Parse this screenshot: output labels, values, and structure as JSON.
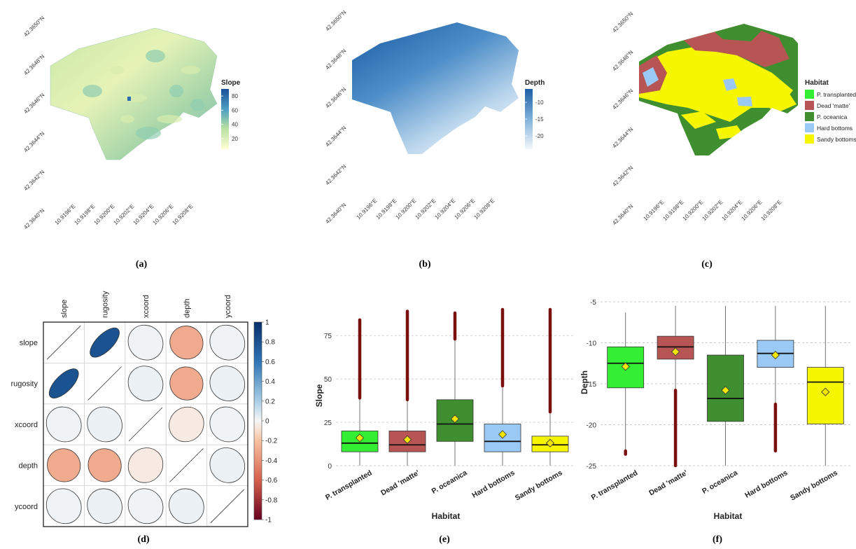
{
  "captions": {
    "a": "(a)",
    "b": "(b)",
    "c": "(c)",
    "d": "(d)",
    "e": "(e)",
    "f": "(f)"
  },
  "colors": {
    "transplanted": "#33ee33",
    "matte": "#b75555",
    "oceanica": "#3f8f30",
    "hard": "#99c9f4",
    "sandy": "#f6f600",
    "mean_marker": "#f2e600",
    "outlier": "#7a0f0f"
  },
  "chart_data": [
    {
      "id": "a",
      "type": "heatmap",
      "description_kind": "map",
      "lat_ticks": [
        "42.3650°N",
        "42.3648°N",
        "42.3646°N",
        "42.3644°N",
        "42.3642°N",
        "42.3640°N"
      ],
      "lon_ticks": [
        "10.9196°E",
        "10.9198°E",
        "10.9200°E",
        "10.9202°E",
        "10.9204°E",
        "10.9206°E",
        "10.9208°E"
      ],
      "legend": {
        "title": "Slope",
        "ticks": [
          80,
          60,
          40,
          20
        ],
        "range": [
          5,
          90
        ]
      }
    },
    {
      "id": "b",
      "type": "heatmap",
      "description_kind": "map",
      "lat_ticks": [
        "42.3650°N",
        "42.3648°N",
        "42.3646°N",
        "42.3644°N",
        "42.3642°N",
        "42.3640°N"
      ],
      "lon_ticks": [
        "10.9196°E",
        "10.9198°E",
        "10.9200°E",
        "10.9202°E",
        "10.9204°E",
        "10.9206°E",
        "10.9208°E"
      ],
      "legend": {
        "title": "Depth",
        "ticks": [
          -10,
          -15,
          -20
        ],
        "range": [
          -24,
          -6
        ]
      }
    },
    {
      "id": "c",
      "type": "heatmap",
      "description_kind": "map",
      "lat_ticks": [
        "42.3650°N",
        "42.3648°N",
        "42.3646°N",
        "42.3644°N",
        "42.3642°N",
        "42.3640°N"
      ],
      "lon_ticks": [
        "10.9196°E",
        "10.9198°E",
        "10.9200°E",
        "10.9202°E",
        "10.9204°E",
        "10.9206°E",
        "10.9208°E"
      ],
      "legend": {
        "title": "Habitat",
        "items": [
          "P. transplanted",
          "Dead 'matte'",
          "P. oceanica",
          "Hard bottoms",
          "Sandy bottoms"
        ]
      }
    },
    {
      "id": "d",
      "type": "heatmap",
      "variables": [
        "slope",
        "rugosity",
        "xcoord",
        "depth",
        "ycoord"
      ],
      "matrix": [
        [
          1,
          0.8,
          0.02,
          -0.3,
          0.02
        ],
        [
          0.8,
          1,
          0.03,
          -0.3,
          0.03
        ],
        [
          0.02,
          0.03,
          1,
          -0.05,
          0.02
        ],
        [
          -0.3,
          -0.3,
          -0.05,
          1,
          0.03
        ],
        [
          0.02,
          0.03,
          0.02,
          0.03,
          1
        ]
      ],
      "colorbar_ticks": [
        "1",
        "0.8",
        "0.6",
        "0.4",
        "0.2",
        "0",
        "-0.2",
        "-0.4",
        "-0.6",
        "-0.8",
        "-1"
      ]
    },
    {
      "id": "e",
      "type": "box",
      "xlabel": "Habitat",
      "ylabel": "Slope",
      "ylim": [
        0,
        90
      ],
      "yticks": [
        0,
        25,
        50,
        75
      ],
      "categories": [
        "P. transplanted",
        "Dead 'matte'",
        "P. oceanica",
        "Hard bottoms",
        "Sandy bottoms"
      ],
      "boxes": [
        {
          "whisker_low": 0,
          "q1": 8,
          "median": 13,
          "q3": 20,
          "whisker_high": 39,
          "mean": 16,
          "outliers_from": 39,
          "outliers_to": 84
        },
        {
          "whisker_low": 0,
          "q1": 8,
          "median": 12,
          "q3": 20,
          "whisker_high": 38,
          "mean": 15,
          "outliers_from": 38,
          "outliers_to": 89
        },
        {
          "whisker_low": 0,
          "q1": 14,
          "median": 24,
          "q3": 38,
          "whisker_high": 73,
          "mean": 27,
          "outliers_from": 73,
          "outliers_to": 88
        },
        {
          "whisker_low": 0,
          "q1": 8,
          "median": 14,
          "q3": 24,
          "whisker_high": 46,
          "mean": 18,
          "outliers_from": 46,
          "outliers_to": 90
        },
        {
          "whisker_low": 0,
          "q1": 8,
          "median": 12,
          "q3": 17,
          "whisker_high": 31,
          "mean": 13,
          "outliers_from": 31,
          "outliers_to": 90
        }
      ]
    },
    {
      "id": "f",
      "type": "box",
      "xlabel": "Habitat",
      "ylabel": "Depth",
      "ylim": [
        -25,
        -5
      ],
      "yticks": [
        -5,
        -10,
        -15,
        -20,
        -25
      ],
      "categories": [
        "P. transplanted",
        "Dead 'matte'",
        "P. oceanica",
        "Hard bottoms",
        "Sandy bottoms"
      ],
      "boxes": [
        {
          "whisker_low": -23.2,
          "q1": -15.5,
          "median": -12.5,
          "q3": -10.5,
          "whisker_high": -6.3,
          "mean": -12.9,
          "outliers_from": -23.2,
          "outliers_to": -23.6
        },
        {
          "whisker_low": -15.8,
          "q1": -12.0,
          "median": -10.5,
          "q3": -9.2,
          "whisker_high": -5.5,
          "mean": -11.1,
          "outliers_from": -25.0,
          "outliers_to": -15.8
        },
        {
          "whisker_low": -25.0,
          "q1": -19.6,
          "median": -16.8,
          "q3": -11.5,
          "whisker_high": -5.5,
          "mean": -15.8,
          "outliers_from": null,
          "outliers_to": null
        },
        {
          "whisker_low": -17.5,
          "q1": -13.0,
          "median": -11.3,
          "q3": -9.7,
          "whisker_high": -5.5,
          "mean": -11.5,
          "outliers_from": -23.2,
          "outliers_to": -17.5
        },
        {
          "whisker_low": -25.0,
          "q1": -19.9,
          "median": -14.8,
          "q3": -13.0,
          "whisker_high": -5.5,
          "mean": -16.0,
          "outliers_from": null,
          "outliers_to": null
        }
      ]
    }
  ]
}
